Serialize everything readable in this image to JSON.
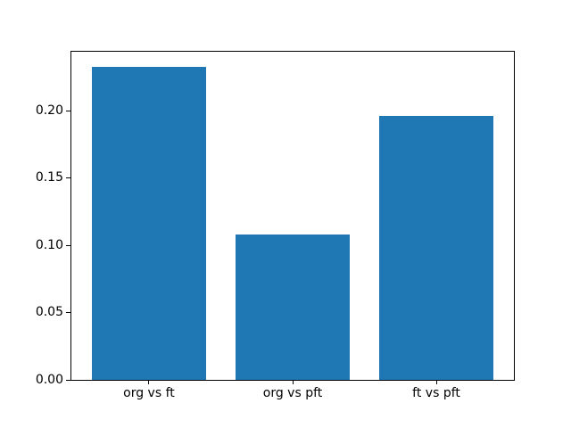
{
  "figure": {
    "background": "#ffffff",
    "axis_color": "#000000"
  },
  "chart_data": {
    "type": "bar",
    "title": "",
    "xlabel": "",
    "ylabel": "",
    "categories": [
      "org vs ft",
      "org vs pft",
      "ft vs pft"
    ],
    "values": [
      0.233,
      0.108,
      0.196
    ],
    "bar_color": "#1f77b4",
    "bar_width_fraction": 0.8,
    "xlim": [
      -0.54,
      2.54
    ],
    "ylim": [
      0,
      0.244
    ],
    "yticks": [
      0,
      0.05,
      0.1,
      0.15,
      0.2
    ],
    "ytick_labels": [
      "0.00",
      "0.05",
      "0.10",
      "0.15",
      "0.20"
    ],
    "grid": false,
    "legend": "none"
  }
}
